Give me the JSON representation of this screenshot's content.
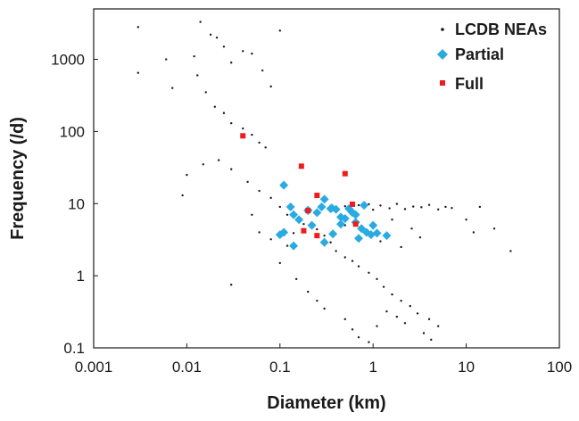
{
  "chart_data": {
    "type": "scatter",
    "title": "",
    "xlabel": "Diameter (km)",
    "ylabel": "Frequency (/d)",
    "xscale": "log",
    "yscale": "log",
    "xlim": [
      0.001,
      100
    ],
    "ylim": [
      0.1,
      5000
    ],
    "grid": false,
    "legend_position": "top-right",
    "x_ticks": [
      "0.001",
      "0.01",
      "0.1",
      "1",
      "10",
      "100"
    ],
    "y_ticks": [
      "0.1",
      "1",
      "10",
      "100",
      "1000"
    ],
    "series": [
      {
        "name": "LCDB NEAs",
        "marker": "dot",
        "color": "#1a1a1a",
        "points": [
          [
            0.003,
            2800
          ],
          [
            0.003,
            650
          ],
          [
            0.006,
            1000
          ],
          [
            0.007,
            400
          ],
          [
            0.012,
            1100
          ],
          [
            0.014,
            3300
          ],
          [
            0.018,
            2200
          ],
          [
            0.021,
            2000
          ],
          [
            0.025,
            1500
          ],
          [
            0.03,
            900
          ],
          [
            0.04,
            1300
          ],
          [
            0.05,
            1200
          ],
          [
            0.065,
            700
          ],
          [
            0.08,
            420
          ],
          [
            0.1,
            2500
          ],
          [
            0.013,
            600
          ],
          [
            0.016,
            350
          ],
          [
            0.02,
            220
          ],
          [
            0.025,
            180
          ],
          [
            0.03,
            130
          ],
          [
            0.04,
            110
          ],
          [
            0.05,
            90
          ],
          [
            0.06,
            70
          ],
          [
            0.07,
            60
          ],
          [
            0.009,
            13
          ],
          [
            0.01,
            25
          ],
          [
            0.015,
            35
          ],
          [
            0.022,
            40
          ],
          [
            0.03,
            30
          ],
          [
            0.045,
            20
          ],
          [
            0.06,
            15
          ],
          [
            0.08,
            12
          ],
          [
            0.1,
            9
          ],
          [
            0.12,
            7
          ],
          [
            0.15,
            6
          ],
          [
            0.18,
            5.2
          ],
          [
            0.25,
            4.4
          ],
          [
            0.3,
            3.6
          ],
          [
            0.35,
            2.9
          ],
          [
            0.4,
            2.2
          ],
          [
            0.5,
            1.8
          ],
          [
            0.6,
            1.6
          ],
          [
            0.7,
            1.35
          ],
          [
            0.9,
            1.1
          ],
          [
            1.1,
            0.9
          ],
          [
            1.3,
            0.7
          ],
          [
            1.6,
            0.55
          ],
          [
            2.0,
            0.45
          ],
          [
            2.5,
            0.38
          ],
          [
            3.0,
            0.3
          ],
          [
            4.0,
            0.25
          ],
          [
            5.0,
            0.2
          ],
          [
            3.5,
            0.16
          ],
          [
            4.2,
            0.13
          ],
          [
            0.4,
            8.5
          ],
          [
            0.5,
            9.2
          ],
          [
            0.6,
            8.0
          ],
          [
            0.7,
            9.5
          ],
          [
            0.8,
            8.8
          ],
          [
            0.9,
            9.8
          ],
          [
            1.0,
            8.2
          ],
          [
            1.2,
            9.4
          ],
          [
            1.5,
            8.6
          ],
          [
            1.8,
            9.9
          ],
          [
            2.2,
            8.4
          ],
          [
            2.7,
            9.1
          ],
          [
            3.3,
            8.9
          ],
          [
            4.0,
            9.6
          ],
          [
            5.0,
            8.3
          ],
          [
            6.0,
            9.0
          ],
          [
            7.0,
            8.7
          ],
          [
            0.5,
            5.0
          ],
          [
            0.8,
            4.0
          ],
          [
            1.2,
            3.0
          ],
          [
            1.6,
            6.0
          ],
          [
            2.0,
            2.5
          ],
          [
            2.6,
            4.5
          ],
          [
            3.2,
            3.4
          ],
          [
            0.15,
            0.9
          ],
          [
            0.2,
            0.6
          ],
          [
            0.25,
            0.45
          ],
          [
            0.3,
            0.35
          ],
          [
            0.5,
            0.25
          ],
          [
            0.6,
            0.18
          ],
          [
            0.7,
            0.14
          ],
          [
            0.9,
            0.12
          ],
          [
            1.1,
            0.2
          ],
          [
            1.4,
            0.32
          ],
          [
            1.8,
            0.27
          ],
          [
            2.2,
            0.22
          ],
          [
            10.0,
            6.0
          ],
          [
            12.0,
            4.0
          ],
          [
            14.0,
            9.0
          ],
          [
            20.0,
            4.5
          ],
          [
            30.0,
            2.2
          ],
          [
            0.03,
            0.75
          ],
          [
            0.05,
            7.0
          ],
          [
            0.06,
            4.0
          ],
          [
            0.08,
            3.2
          ],
          [
            0.1,
            1.5
          ],
          [
            0.12,
            2.6
          ],
          [
            0.14,
            3.9
          ]
        ]
      },
      {
        "name": "Partial",
        "marker": "diamond",
        "color": "#29ABE2",
        "points": [
          [
            0.11,
            18
          ],
          [
            0.13,
            9
          ],
          [
            0.14,
            7
          ],
          [
            0.16,
            6
          ],
          [
            0.2,
            8
          ],
          [
            0.22,
            5
          ],
          [
            0.25,
            7.5
          ],
          [
            0.28,
            9
          ],
          [
            0.3,
            11.5
          ],
          [
            0.35,
            8.5
          ],
          [
            0.4,
            8.3
          ],
          [
            0.45,
            6.5
          ],
          [
            0.5,
            6.2
          ],
          [
            0.55,
            8.5
          ],
          [
            0.6,
            7.5
          ],
          [
            0.65,
            5.5
          ],
          [
            0.75,
            4.5
          ],
          [
            0.8,
            9.5
          ],
          [
            0.85,
            4.0
          ],
          [
            0.95,
            3.7
          ],
          [
            1.0,
            5.0
          ],
          [
            1.1,
            3.9
          ],
          [
            1.4,
            3.6
          ],
          [
            0.1,
            3.7
          ],
          [
            0.11,
            4.0
          ],
          [
            0.14,
            2.6
          ],
          [
            0.3,
            2.9
          ],
          [
            0.37,
            3.8
          ],
          [
            0.45,
            5.2
          ],
          [
            0.7,
            3.3
          ],
          [
            0.2,
            8.1
          ],
          [
            0.36,
            8.7
          ],
          [
            0.65,
            7.0
          ]
        ]
      },
      {
        "name": "Full",
        "marker": "square",
        "color": "#EE1C1C",
        "points": [
          [
            0.04,
            87
          ],
          [
            0.17,
            33
          ],
          [
            0.5,
            26
          ],
          [
            0.25,
            13
          ],
          [
            0.2,
            8
          ],
          [
            0.6,
            9.8
          ],
          [
            0.18,
            4.2
          ],
          [
            0.25,
            3.6
          ],
          [
            0.65,
            5.2
          ]
        ]
      }
    ]
  }
}
